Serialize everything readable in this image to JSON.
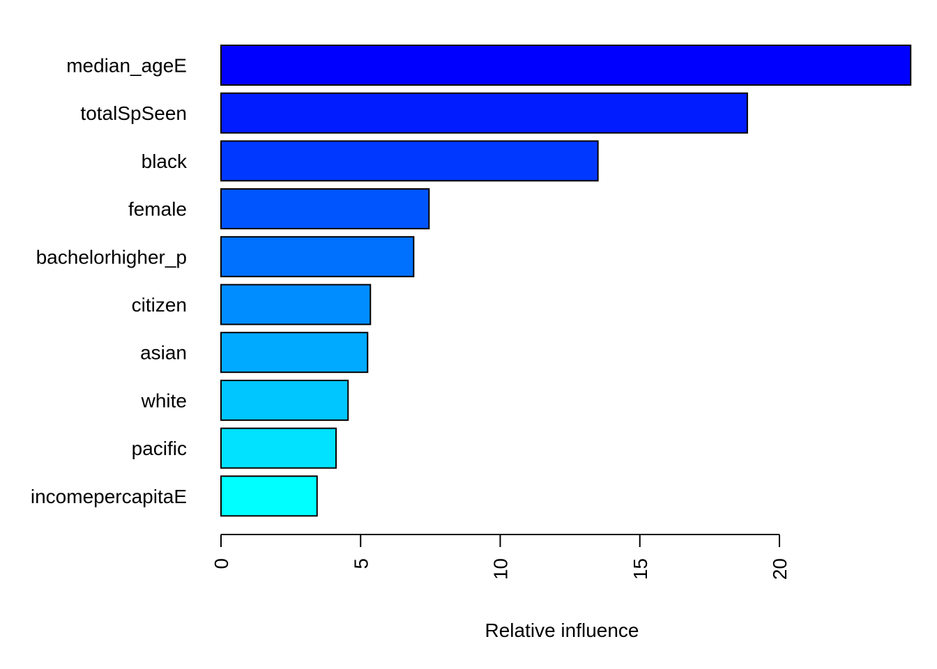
{
  "chart_data": {
    "type": "bar",
    "orientation": "horizontal",
    "xlabel": "Relative influence",
    "xlim": [
      0,
      24.7
    ],
    "x_ticks": [
      0,
      5,
      10,
      15,
      20
    ],
    "x_tick_labels": [
      "0",
      "5",
      "10",
      "15",
      "20"
    ],
    "grid": false,
    "legend": "none",
    "categories": [
      "median_ageE",
      "totalSpSeen",
      "black",
      "female",
      "bachelorhigher_p",
      "citizen",
      "asian",
      "white",
      "pacific",
      "incomepercapitaE"
    ],
    "values": [
      24.7,
      18.85,
      13.5,
      7.45,
      6.9,
      5.35,
      5.25,
      4.55,
      4.12,
      3.44
    ],
    "colors": [
      "#0000FF",
      "#001CFF",
      "#0038FF",
      "#0055FF",
      "#0071FF",
      "#008DFF",
      "#00AAFF",
      "#00C6FF",
      "#00E2FF",
      "#00FFFF"
    ]
  }
}
